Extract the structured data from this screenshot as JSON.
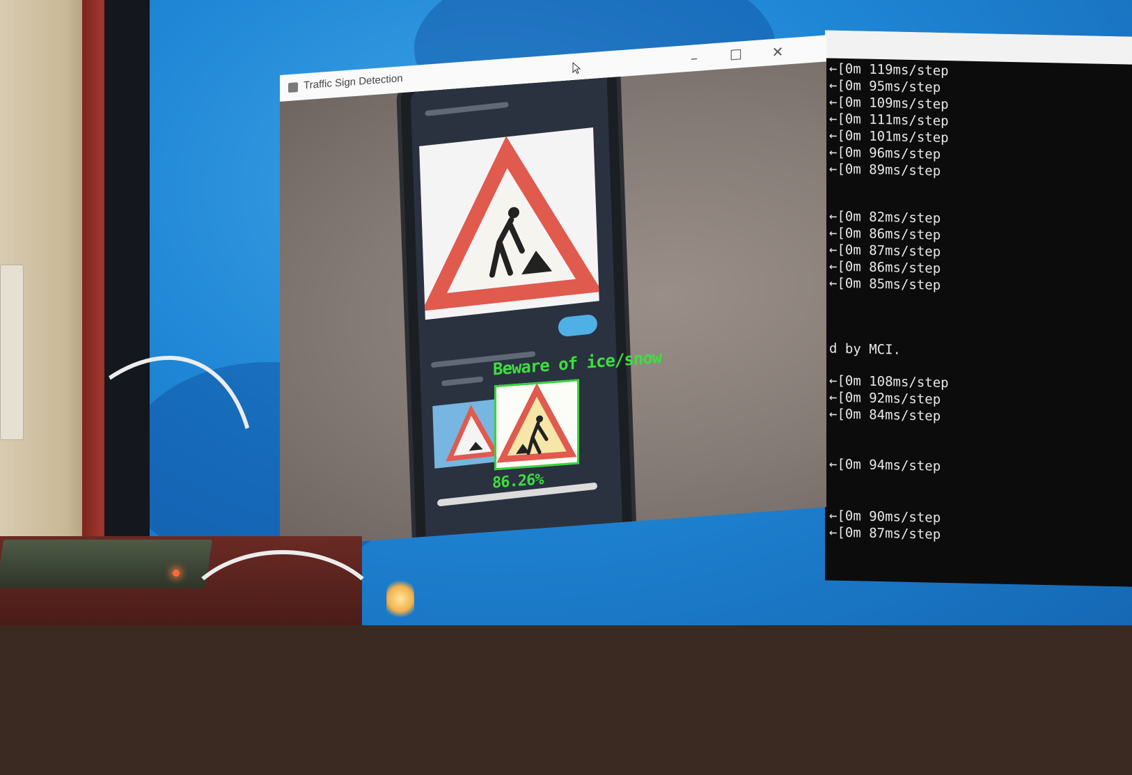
{
  "window": {
    "title": "Traffic Sign Detection",
    "controls": {
      "minimize": "–",
      "maximize": "☐",
      "close": "✕"
    }
  },
  "detection": {
    "label": "Beware of ice/snow",
    "confidence": "86.26%",
    "box_color": "#37d43a"
  },
  "console": {
    "lines": [
      "←[0m 119ms/step",
      "←[0m 95ms/step",
      "←[0m 109ms/step",
      "←[0m 111ms/step",
      "←[0m 101ms/step",
      "←[0m 96ms/step",
      "←[0m 89ms/step",
      "←[0m 82ms/step",
      "←[0m 86ms/step",
      "←[0m 87ms/step",
      "←[0m 86ms/step",
      "←[0m 85ms/step",
      "d by MCI.",
      "←[0m 108ms/step",
      "←[0m 92ms/step",
      "←[0m 84ms/step",
      "←[0m 94ms/step",
      "←[0m 90ms/step",
      "←[0m 87ms/step"
    ]
  },
  "colors": {
    "desktop": "#1f86d6",
    "console_bg": "#0c0c0c",
    "detection_text": "#3be03d",
    "sign_red": "#e05a4e"
  },
  "icons": [
    "app-icon",
    "cursor-icon",
    "minimize-icon",
    "maximize-icon",
    "close-icon",
    "road-work-sign-icon"
  ]
}
